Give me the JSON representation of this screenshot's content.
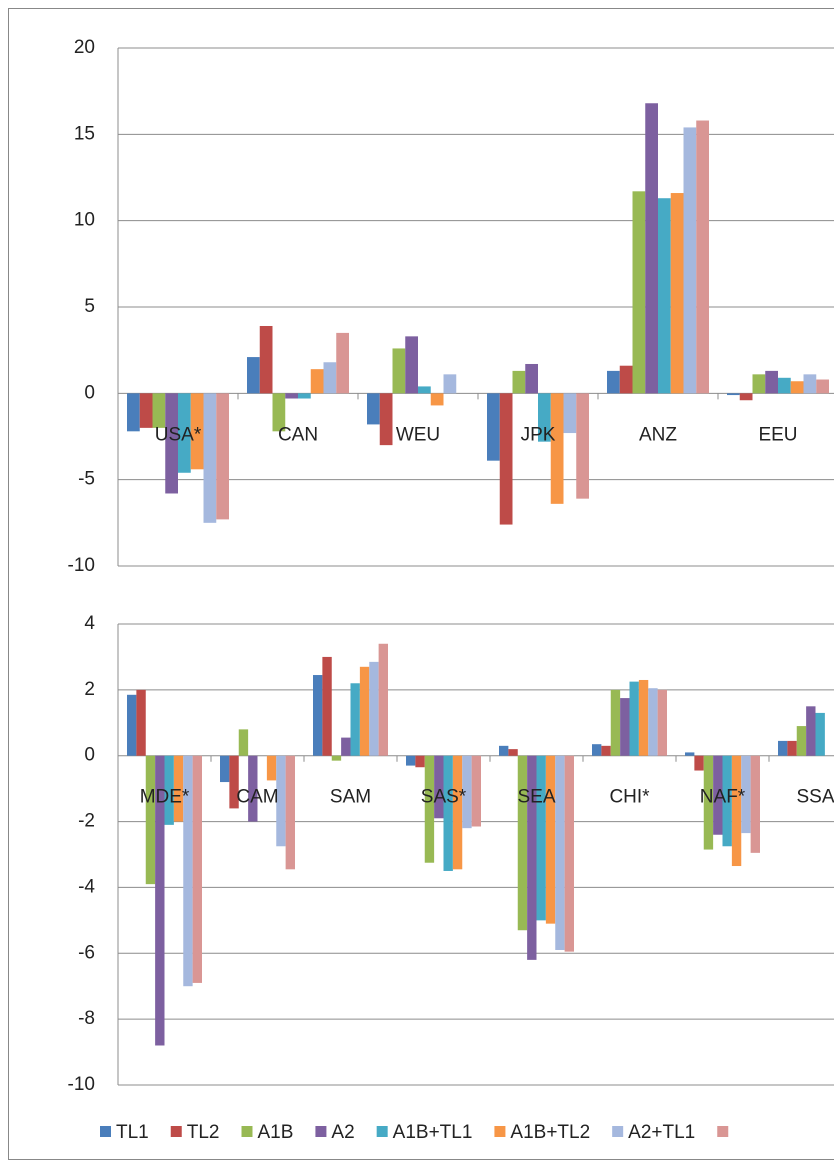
{
  "chart_data": [
    {
      "type": "bar",
      "categories": [
        "USA*",
        "CAN",
        "WEU",
        "JPK",
        "ANZ",
        "EEU"
      ],
      "series": [
        {
          "name": "TL1",
          "color": "#4a7ebb",
          "values": [
            -2.2,
            2.1,
            -1.8,
            -3.9,
            1.3,
            -0.1
          ]
        },
        {
          "name": "TL2",
          "color": "#be4b48",
          "values": [
            -2.0,
            3.9,
            -3.0,
            -7.6,
            1.6,
            -0.4
          ]
        },
        {
          "name": "A1B",
          "color": "#98b954",
          "values": [
            -2.0,
            -2.2,
            2.6,
            1.3,
            11.7,
            1.1
          ]
        },
        {
          "name": "A2",
          "color": "#7d60a0",
          "values": [
            -5.8,
            -0.3,
            3.3,
            1.7,
            16.8,
            1.3
          ]
        },
        {
          "name": "A1B+TL1",
          "color": "#46aac5",
          "values": [
            -4.6,
            -0.3,
            0.4,
            -2.8,
            11.3,
            0.9
          ]
        },
        {
          "name": "A1B+TL2",
          "color": "#f79646",
          "values": [
            -4.4,
            1.4,
            -0.7,
            -6.4,
            11.6,
            0.7
          ]
        },
        {
          "name": "A2+TL1",
          "color": "#a5b8de",
          "values": [
            -7.5,
            1.8,
            1.1,
            -2.3,
            15.4,
            1.1
          ]
        },
        {
          "name": null,
          "color": "#d99694",
          "values": [
            -7.3,
            3.5,
            0,
            -6.1,
            15.8,
            0.8
          ]
        }
      ],
      "ylim": [
        -10,
        20
      ],
      "yticks": [
        -10,
        -5,
        0,
        5,
        10,
        15,
        20
      ],
      "grid": true
    },
    {
      "type": "bar",
      "categories": [
        "MDE*",
        "CAM",
        "SAM",
        "SAS*",
        "SEA",
        "CHI*",
        "NAF*",
        "SSA"
      ],
      "series": [
        {
          "color": "#4a7ebb",
          "values": [
            1.85,
            -0.8,
            2.45,
            -0.3,
            0.3,
            0.35,
            0.1,
            0.45
          ]
        },
        {
          "color": "#be4b48",
          "values": [
            2.0,
            -1.6,
            3.0,
            -0.35,
            0.2,
            0.3,
            -0.45,
            0.45
          ]
        },
        {
          "color": "#98b954",
          "values": [
            -3.9,
            0.8,
            -0.15,
            -3.25,
            -5.3,
            2.0,
            -2.85,
            0.9
          ]
        },
        {
          "color": "#7d60a0",
          "values": [
            -8.8,
            -2.0,
            0.55,
            -1.9,
            -6.2,
            1.75,
            -2.4,
            1.5
          ]
        },
        {
          "color": "#46aac5",
          "values": [
            -2.1,
            0,
            2.2,
            -3.5,
            -5.0,
            2.25,
            -2.75,
            1.3
          ]
        },
        {
          "color": "#f79646",
          "values": [
            -2.0,
            -0.75,
            2.7,
            -3.45,
            -5.1,
            2.3,
            -3.35,
            null
          ]
        },
        {
          "color": "#a5b8de",
          "values": [
            -7.0,
            -2.75,
            2.85,
            -2.2,
            -5.9,
            2.05,
            -2.35,
            null
          ]
        },
        {
          "color": "#d99694",
          "values": [
            -6.9,
            -3.45,
            3.4,
            -2.15,
            -5.95,
            2.0,
            -2.95,
            null
          ]
        }
      ],
      "ylim": [
        -10,
        4
      ],
      "yticks": [
        -10,
        -8,
        -6,
        -4,
        -2,
        0,
        2,
        4
      ],
      "grid": true
    }
  ]
}
